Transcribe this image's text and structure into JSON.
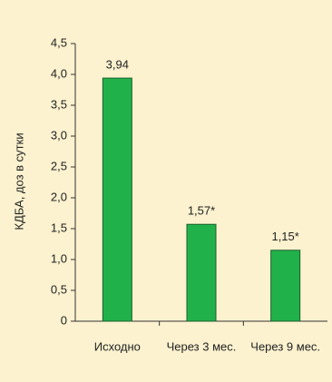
{
  "chart_data": {
    "type": "bar",
    "y_label": "КДБА, доз в сутки",
    "categories": [
      "Исходно",
      "Через 3 мес.",
      "Через 9 мес."
    ],
    "values": [
      3.94,
      1.57,
      1.15
    ],
    "value_labels": [
      "3,94",
      "1,57*",
      "1,15*"
    ],
    "color": "#21b14b",
    "ylim": [
      0,
      4.5
    ],
    "yticks": [
      0,
      {
        "value": 0.5,
        "label": "0,5"
      },
      {
        "value": 1,
        "label": "1,0"
      },
      {
        "value": 1.5,
        "label": "1,5"
      },
      {
        "value": 2,
        "label": "2,0"
      },
      {
        "value": 2.5,
        "label": "2,5"
      },
      {
        "value": 3,
        "label": "3,0"
      },
      {
        "value": 3.5,
        "label": "3,5"
      },
      {
        "value": 4,
        "label": "4,0"
      },
      {
        "value": 4.5,
        "label": "4,5"
      }
    ]
  }
}
